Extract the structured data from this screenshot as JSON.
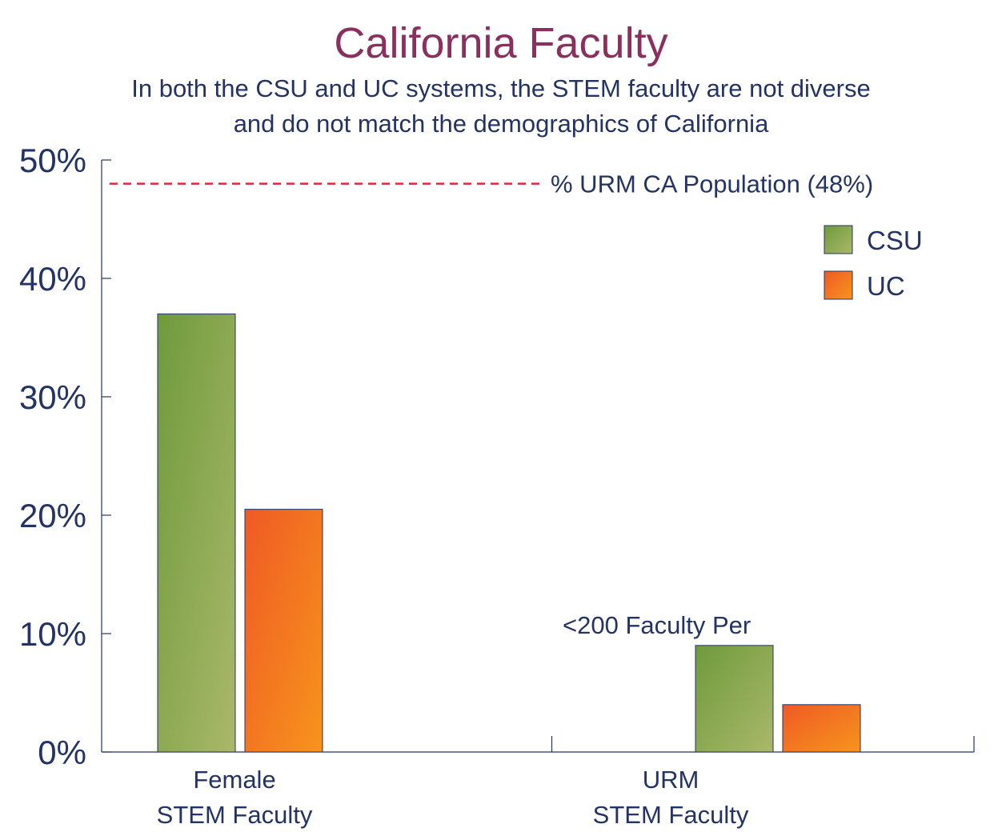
{
  "colors": {
    "text": "#243366",
    "title": "#8a2f5e",
    "axis": "#243366",
    "reference_line": "#e8253f",
    "csu_dark": "#6f9a3c",
    "csu_light": "#aab86a",
    "uc_dark": "#ef5a24",
    "uc_light": "#f7941d"
  },
  "chart_data": {
    "type": "bar",
    "title": "California Faculty",
    "subtitle_lines": [
      "In both the CSU and UC systems, the STEM faculty are not diverse",
      "and do not match the demographics of California"
    ],
    "categories": [
      {
        "lines": [
          "Female",
          "STEM Faculty"
        ]
      },
      {
        "lines": [
          "URM",
          "STEM Faculty"
        ]
      }
    ],
    "series": [
      {
        "name": "CSU",
        "values": [
          37,
          9
        ]
      },
      {
        "name": "UC",
        "values": [
          20.5,
          4
        ]
      }
    ],
    "ylim": [
      0,
      50
    ],
    "yticks": [
      0,
      10,
      20,
      30,
      40,
      50
    ],
    "ytick_labels": [
      "0%",
      "10%",
      "20%",
      "30%",
      "40%",
      "50%"
    ],
    "xlabel": "",
    "ylabel": "",
    "reference_line": {
      "value": 48,
      "label": "% URM CA Population (48%)"
    },
    "annotations": [
      {
        "text": "<200 Faculty Per",
        "category_index": 1
      }
    ],
    "legend": {
      "position": "top-right",
      "entries": [
        "CSU",
        "UC"
      ]
    }
  }
}
